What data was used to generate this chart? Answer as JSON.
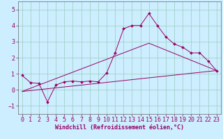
{
  "xlabel": "Windchill (Refroidissement éolien,°C)",
  "bg_color": "#cceeff",
  "line_color": "#990066",
  "grid_color": "#99ccbb",
  "spine_color": "#666666",
  "xlim": [
    -0.5,
    23.5
  ],
  "ylim": [
    -1.5,
    5.5
  ],
  "yticks": [
    -1,
    0,
    1,
    2,
    3,
    4,
    5
  ],
  "xticks": [
    0,
    1,
    2,
    3,
    4,
    5,
    6,
    7,
    8,
    9,
    10,
    11,
    12,
    13,
    14,
    15,
    16,
    17,
    18,
    19,
    20,
    21,
    22,
    23
  ],
  "line1_x": [
    0,
    1,
    2,
    3,
    4,
    5,
    6,
    7,
    8,
    9,
    10,
    11,
    12,
    13,
    14,
    15,
    16,
    17,
    18,
    19,
    20,
    21,
    22,
    23
  ],
  "line1_y": [
    0.9,
    0.45,
    0.4,
    -0.75,
    0.3,
    0.5,
    0.55,
    0.5,
    0.55,
    0.5,
    1.05,
    2.3,
    3.8,
    4.0,
    4.0,
    4.75,
    4.0,
    3.3,
    2.85,
    2.65,
    2.3,
    2.3,
    1.8,
    1.2
  ],
  "line2_x": [
    0,
    23
  ],
  "line2_y": [
    -0.1,
    1.2
  ],
  "line3_x": [
    0,
    15,
    23
  ],
  "line3_y": [
    -0.1,
    2.9,
    1.2
  ],
  "xlabel_fontsize": 6,
  "tick_fontsize": 6
}
